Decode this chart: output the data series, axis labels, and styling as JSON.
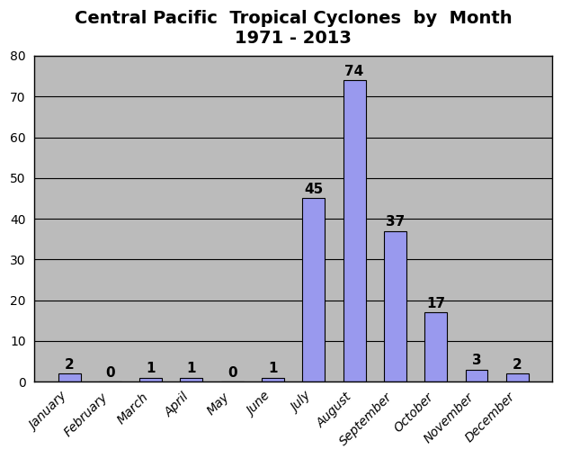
{
  "title_line1": "Central Pacific  Tropical Cyclones  by  Month",
  "title_line2": "1971 - 2013",
  "categories": [
    "January",
    "February",
    "March",
    "April",
    "May",
    "June",
    "July",
    "August",
    "September",
    "October",
    "November",
    "December"
  ],
  "values": [
    2,
    0,
    1,
    1,
    0,
    1,
    45,
    74,
    37,
    17,
    3,
    2
  ],
  "bar_color": "#9999ee",
  "bar_edgecolor": "#000000",
  "ylim": [
    0,
    80
  ],
  "yticks": [
    0,
    10,
    20,
    30,
    40,
    50,
    60,
    70,
    80
  ],
  "figure_bg_color": "#ffffff",
  "plot_bg_color": "#bbbbbb",
  "title_fontsize": 14,
  "tick_fontsize": 10,
  "label_fontsize": 11,
  "grid_color": "#000000",
  "label_color": "#000000",
  "bar_width": 0.55
}
